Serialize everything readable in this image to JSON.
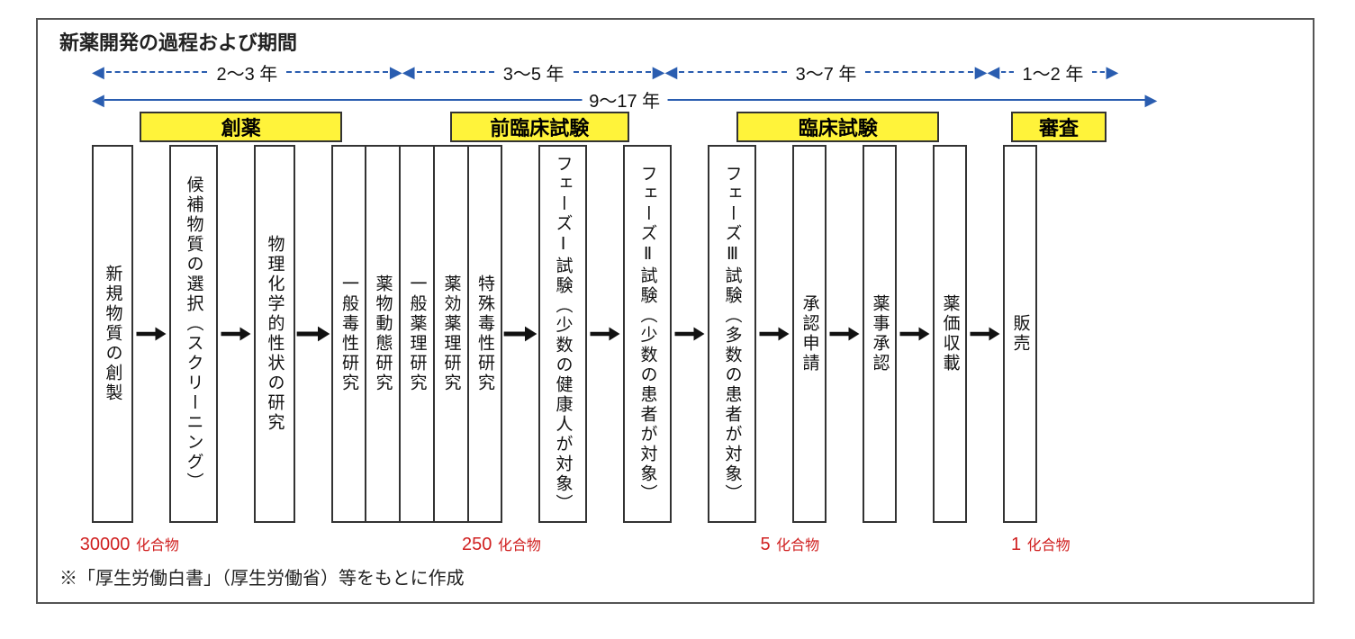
{
  "type": "flowchart",
  "title": "新薬開発の過程および期間",
  "colors": {
    "border": "#333333",
    "arrow_blue": "#2a5db0",
    "stage_fill": "#fff33a",
    "text": "#111111",
    "count_red": "#d02020",
    "background": "#ffffff"
  },
  "timeline_segments": [
    {
      "label": "2～3 年",
      "left_pct": 0,
      "width_pct": 26
    },
    {
      "label": "3～5 年",
      "left_pct": 26,
      "width_pct": 22
    },
    {
      "label": "3～7 年",
      "left_pct": 48,
      "width_pct": 27
    },
    {
      "label": "1～2 年",
      "left_pct": 75,
      "width_pct": 11
    }
  ],
  "total_span": {
    "label": "9～17 年",
    "left_pct": 0,
    "width_pct": 86
  },
  "stage_headers": [
    {
      "label": "創薬",
      "left_pct": 4,
      "width_pct": 17
    },
    {
      "label": "前臨床試験",
      "left_pct": 30,
      "width_pct": 15
    },
    {
      "label": "臨床試験",
      "left_pct": 54,
      "width_pct": 17
    },
    {
      "label": "審査",
      "left_pct": 77,
      "width_pct": 8
    }
  ],
  "flow": [
    {
      "t": "col",
      "w": "med",
      "text": "新規物質の創製"
    },
    {
      "t": "arrow"
    },
    {
      "t": "col",
      "w": "wide",
      "text": "候補物質の選択︵スクリーニング︶"
    },
    {
      "t": "arrow"
    },
    {
      "t": "col",
      "w": "med",
      "text": "物理化学的性状の研究"
    },
    {
      "t": "arrow",
      "big": true
    },
    {
      "t": "group",
      "cols": [
        {
          "w": "narrow",
          "text": "一般毒性研究"
        },
        {
          "w": "narrow",
          "text": "薬物動態研究"
        },
        {
          "w": "narrow",
          "text": "一般薬理研究"
        },
        {
          "w": "narrow",
          "text": "薬効薬理研究"
        },
        {
          "w": "narrow",
          "text": "特殊毒性研究"
        }
      ]
    },
    {
      "t": "arrow",
      "big": true
    },
    {
      "t": "col",
      "w": "wide",
      "text": "フェーズⅠ試験︵少数の健康人が対象︶",
      "sub": true
    },
    {
      "t": "arrow"
    },
    {
      "t": "col",
      "w": "wide",
      "text": "フェーズⅡ試験︵少数の患者が対象︶",
      "sub": true
    },
    {
      "t": "arrow"
    },
    {
      "t": "col",
      "w": "wide",
      "text": "フェーズⅢ試験︵多数の患者が対象︶",
      "sub": true
    },
    {
      "t": "arrow"
    },
    {
      "t": "group",
      "cols": [
        {
          "w": "narrow",
          "text": "承認申請"
        }
      ]
    },
    {
      "t": "arrow"
    },
    {
      "t": "group",
      "cols": [
        {
          "w": "narrow",
          "text": "薬事承認"
        }
      ]
    },
    {
      "t": "arrow"
    },
    {
      "t": "col",
      "w": "narrow",
      "text": "薬価収載"
    },
    {
      "t": "arrow"
    },
    {
      "t": "col",
      "w": "narrow",
      "text": "販売"
    }
  ],
  "compound_counts": [
    {
      "num": "30000",
      "unit": "化合物",
      "left_pct": -1
    },
    {
      "num": "250",
      "unit": "化合物",
      "left_pct": 31
    },
    {
      "num": "5",
      "unit": "化合物",
      "left_pct": 56
    },
    {
      "num": "1",
      "unit": "化合物",
      "left_pct": 77
    }
  ],
  "footnote": "※「厚生労働白書」（厚生労働省）等をもとに作成"
}
